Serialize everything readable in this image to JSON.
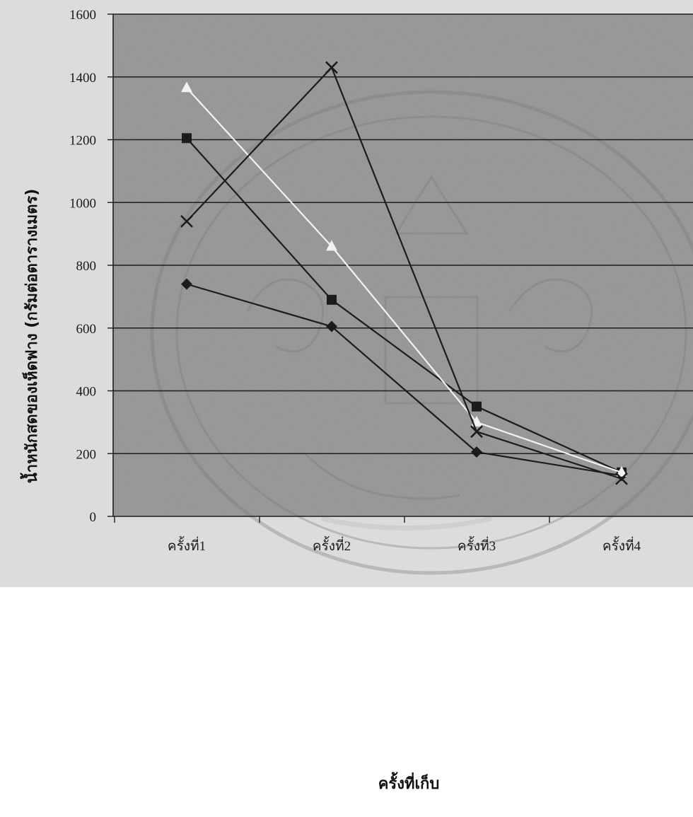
{
  "chart_data": {
    "type": "line",
    "title": "",
    "xlabel": "ครั้งที่เก็บ",
    "ylabel": "น้ำหนักสดของเห็ดฟาง (กรัมต่อตารางเมตร)",
    "categories": [
      "ครั้งที่1",
      "ครั้งที่2",
      "ครั้งที่3",
      "ครั้งที่4"
    ],
    "ylim": [
      0,
      1600
    ],
    "yticks": [
      0,
      200,
      400,
      600,
      800,
      1000,
      1200,
      1400,
      1600
    ],
    "grid": true,
    "legend": "none",
    "background": "#9e9e9e",
    "series": [
      {
        "marker": "diamond",
        "color": "#1c1c1c",
        "values": [
          740,
          605,
          205,
          130
        ]
      },
      {
        "marker": "square",
        "color": "#1c1c1c",
        "values": [
          1205,
          690,
          350,
          140
        ]
      },
      {
        "marker": "triangle",
        "color": "#f2f2f2",
        "values": [
          1365,
          860,
          300,
          140
        ]
      },
      {
        "marker": "x",
        "color": "#1c1c1c",
        "values": [
          940,
          1430,
          270,
          120
        ]
      }
    ]
  }
}
